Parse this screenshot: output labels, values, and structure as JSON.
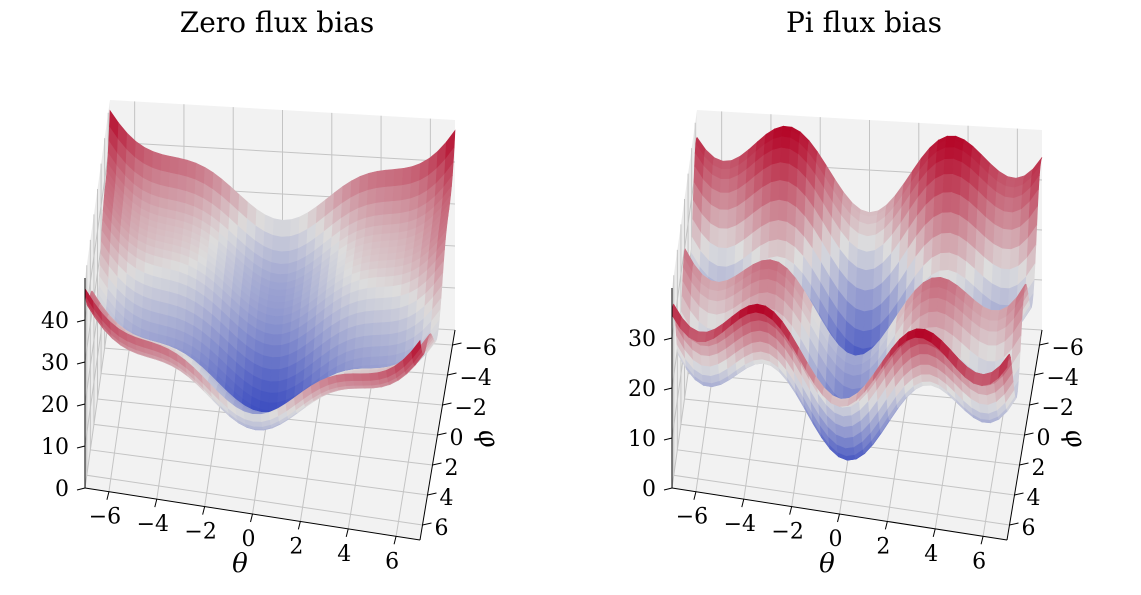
{
  "chart_data": [
    {
      "type": "surface3d",
      "title": "Zero flux bias",
      "xlabel": "θ",
      "ylabel": "φ",
      "zlabel": "",
      "x_ticks": [
        "−6",
        "−4",
        "−2",
        "0",
        "2",
        "4",
        "6"
      ],
      "y_ticks": [
        "−6",
        "−4",
        "−2",
        "0",
        "2",
        "4",
        "6"
      ],
      "z_ticks": [
        "0",
        "10",
        "20",
        "30",
        "40"
      ],
      "xlim": [
        -7,
        7
      ],
      "ylim": [
        -7,
        7
      ],
      "zlim": [
        0,
        50
      ],
      "colormap": "coolwarm",
      "grid": true
    },
    {
      "type": "surface3d",
      "title": "Pi flux bias",
      "xlabel": "θ",
      "ylabel": "φ",
      "zlabel": "",
      "x_ticks": [
        "−6",
        "−4",
        "−2",
        "0",
        "2",
        "4",
        "6"
      ],
      "y_ticks": [
        "−6",
        "−4",
        "−2",
        "0",
        "2",
        "4",
        "6"
      ],
      "z_ticks": [
        "0",
        "10",
        "20",
        "30"
      ],
      "xlim": [
        -7,
        7
      ],
      "ylim": [
        -7,
        7
      ],
      "zlim": [
        0,
        40
      ],
      "colormap": "coolwarm",
      "grid": true
    }
  ],
  "colors": {
    "pane": "#f2f2f2",
    "pane_side": "#ebebeb",
    "grid": "#c4c4c4",
    "cmap_low": "#3b4cc0",
    "cmap_mid": "#dddddd",
    "cmap_high": "#b40426"
  }
}
